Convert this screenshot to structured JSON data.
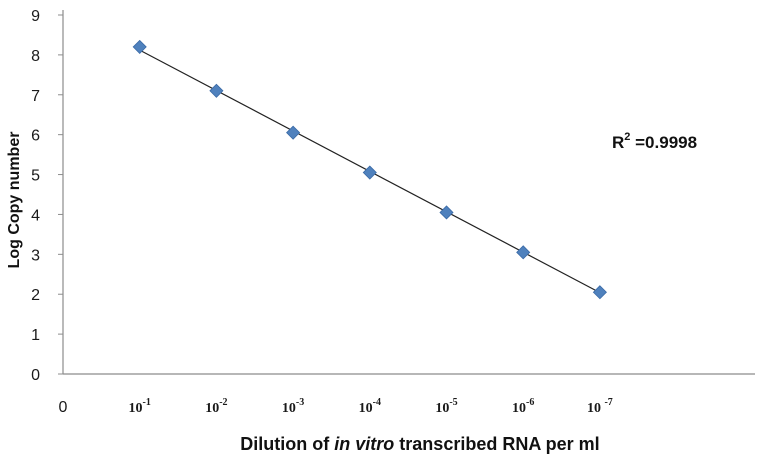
{
  "chart_data": {
    "type": "scatter",
    "xlabel_parts": [
      "Dilution of ",
      "in vitro",
      " transcribed RNA per ml"
    ],
    "ylabel": "Log Copy number",
    "x_tick_labels": [
      {
        "base": "0",
        "exp": ""
      },
      {
        "base": "10",
        "exp": "-1"
      },
      {
        "base": "10",
        "exp": "-2"
      },
      {
        "base": "10",
        "exp": "-3"
      },
      {
        "base": "10",
        "exp": "-4"
      },
      {
        "base": "10",
        "exp": "-5"
      },
      {
        "base": "10",
        "exp": "-6"
      },
      {
        "base": "10 ",
        "exp": "-7"
      }
    ],
    "x": [
      1,
      2,
      3,
      4,
      5,
      6,
      7
    ],
    "x_meaning": "log10 of dilution fold (10^-1 = 1 ... 10^-7 = 7)",
    "y": [
      8.2,
      7.1,
      6.05,
      5.05,
      4.05,
      3.05,
      2.05
    ],
    "ylim": [
      0,
      9
    ],
    "y_ticks": [
      0,
      1,
      2,
      3,
      4,
      5,
      6,
      7,
      8,
      9
    ],
    "trendline": {
      "type": "linear",
      "from": [
        1,
        8.12
      ],
      "to": [
        7,
        2.04
      ]
    },
    "annotation": {
      "base": "R",
      "sup": "2",
      "rest": " =0.9998"
    },
    "marker_color": "#4f81bd",
    "marker_stroke": "#3a6aa6",
    "line_color": "#222222",
    "grid": false,
    "legend": "none"
  }
}
